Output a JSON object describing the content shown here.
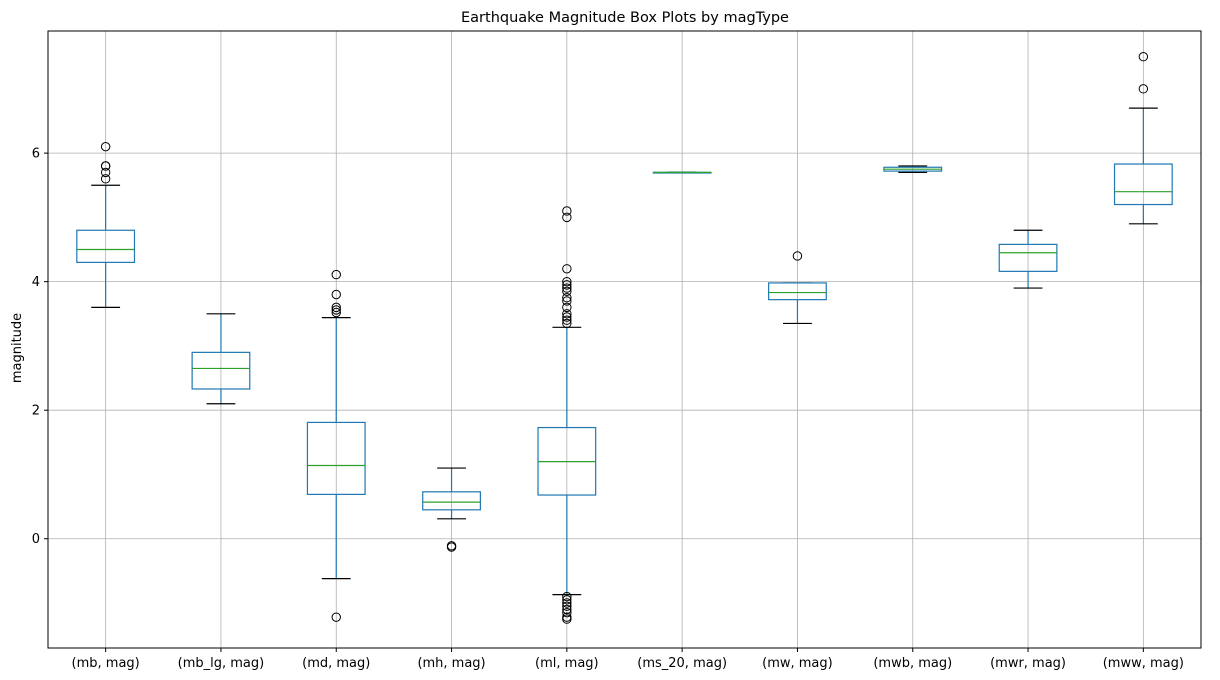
{
  "chart_data": {
    "type": "box",
    "title": "Earthquake Magnitude Box Plots by magType",
    "xlabel": "",
    "ylabel": "magnitude",
    "ylim": [
      -1.7,
      7.9
    ],
    "yticks": [
      0,
      2,
      4,
      6
    ],
    "grid": true,
    "categories": [
      "(mb, mag)",
      "(mb_lg, mag)",
      "(md, mag)",
      "(mh, mag)",
      "(ml, mag)",
      "(ms_20, mag)",
      "(mw, mag)",
      "(mwb, mag)",
      "(mwr, mag)",
      "(mww, mag)"
    ],
    "boxes": [
      {
        "whisker_low": 3.6,
        "q1": 4.3,
        "median": 4.5,
        "q3": 4.8,
        "whisker_high": 5.5,
        "outliers": [
          5.6,
          5.7,
          5.8,
          5.8,
          6.1
        ]
      },
      {
        "whisker_low": 2.1,
        "q1": 2.33,
        "median": 2.65,
        "q3": 2.9,
        "whisker_high": 3.5,
        "outliers": []
      },
      {
        "whisker_low": -0.62,
        "q1": 0.69,
        "median": 1.14,
        "q3": 1.81,
        "whisker_high": 3.44,
        "outliers": [
          -1.22,
          3.52,
          3.56,
          3.6,
          3.8,
          4.11
        ]
      },
      {
        "whisker_low": 0.31,
        "q1": 0.45,
        "median": 0.57,
        "q3": 0.73,
        "whisker_high": 1.1,
        "outliers": [
          -0.11,
          -0.13
        ]
      },
      {
        "whisker_low": -0.87,
        "q1": 0.68,
        "median": 1.2,
        "q3": 1.73,
        "whisker_high": 3.29,
        "outliers": [
          -0.9,
          -0.95,
          -1.0,
          -1.05,
          -1.1,
          -1.15,
          -1.22,
          -1.25,
          3.35,
          3.4,
          3.45,
          3.5,
          3.6,
          3.7,
          3.75,
          3.85,
          3.9,
          3.95,
          4.0,
          4.2,
          5.0,
          5.1
        ]
      },
      {
        "whisker_low": 5.7,
        "q1": 5.7,
        "median": 5.7,
        "q3": 5.7,
        "whisker_high": 5.7,
        "outliers": []
      },
      {
        "whisker_low": 3.35,
        "q1": 3.72,
        "median": 3.83,
        "q3": 3.98,
        "whisker_high": 3.98,
        "outliers": [
          4.4
        ]
      },
      {
        "whisker_low": 5.7,
        "q1": 5.72,
        "median": 5.75,
        "q3": 5.78,
        "whisker_high": 5.8,
        "outliers": []
      },
      {
        "whisker_low": 3.9,
        "q1": 4.16,
        "median": 4.45,
        "q3": 4.58,
        "whisker_high": 4.8,
        "outliers": []
      },
      {
        "whisker_low": 4.9,
        "q1": 5.2,
        "median": 5.4,
        "q3": 5.83,
        "whisker_high": 6.7,
        "outliers": [
          7.0,
          7.5
        ]
      }
    ]
  },
  "colors": {
    "box": "#1f77b4",
    "median": "#2ca02c",
    "grid": "#b0b0b0",
    "axis": "#000000",
    "background": "#ffffff"
  }
}
